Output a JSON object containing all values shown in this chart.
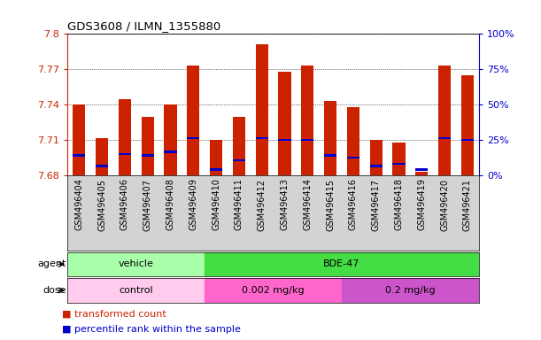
{
  "title": "GDS3608 / ILMN_1355880",
  "samples": [
    "GSM496404",
    "GSM496405",
    "GSM496406",
    "GSM496407",
    "GSM496408",
    "GSM496409",
    "GSM496410",
    "GSM496411",
    "GSM496412",
    "GSM496413",
    "GSM496414",
    "GSM496415",
    "GSM496416",
    "GSM496417",
    "GSM496418",
    "GSM496419",
    "GSM496420",
    "GSM496421"
  ],
  "bar_tops": [
    7.74,
    7.712,
    7.745,
    7.73,
    7.74,
    7.773,
    7.71,
    7.73,
    7.791,
    7.768,
    7.773,
    7.743,
    7.738,
    7.71,
    7.708,
    7.683,
    7.773,
    7.765
  ],
  "perc_pos": [
    7.697,
    7.688,
    7.698,
    7.697,
    7.7,
    7.712,
    7.685,
    7.693,
    7.712,
    7.71,
    7.71,
    7.697,
    7.695,
    7.688,
    7.69,
    7.685,
    7.712,
    7.71
  ],
  "ymin": 7.68,
  "ymax": 7.8,
  "ytick_vals": [
    7.68,
    7.71,
    7.74,
    7.77,
    7.8
  ],
  "ytick_labels": [
    "7.68",
    "7.71",
    "7.74",
    "7.77",
    "7.8"
  ],
  "right_pct": [
    0,
    25,
    50,
    75,
    100
  ],
  "bar_color": "#CC2200",
  "perc_color": "#0000CC",
  "bar_width": 0.55,
  "agent_groups": [
    {
      "label": "vehicle",
      "xstart": -0.5,
      "xend": 5.5,
      "color": "#AAFFAA"
    },
    {
      "label": "BDE-47",
      "xstart": 5.5,
      "xend": 17.5,
      "color": "#44DD44"
    }
  ],
  "dose_groups": [
    {
      "label": "control",
      "xstart": -0.5,
      "xend": 5.5,
      "color": "#FFCCEE"
    },
    {
      "label": "0.002 mg/kg",
      "xstart": 5.5,
      "xend": 11.5,
      "color": "#FF66CC"
    },
    {
      "label": "0.2 mg/kg",
      "xstart": 11.5,
      "xend": 17.5,
      "color": "#CC55CC"
    }
  ],
  "legend": [
    {
      "color": "#CC2200",
      "label": "transformed count"
    },
    {
      "color": "#0000CC",
      "label": "percentile rank within the sample"
    }
  ],
  "label_area_color": "#D3D3D3",
  "agent_bg": "#D3D3D3",
  "dose_bg": "#D3D3D3"
}
